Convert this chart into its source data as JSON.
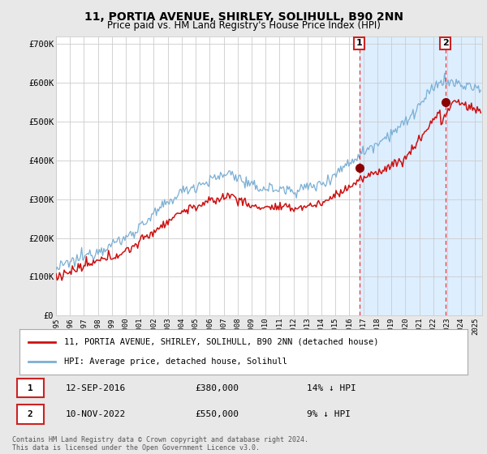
{
  "title": "11, PORTIA AVENUE, SHIRLEY, SOLIHULL, B90 2NN",
  "subtitle": "Price paid vs. HM Land Registry's House Price Index (HPI)",
  "title_fontsize": 10,
  "subtitle_fontsize": 8.5,
  "ylabel_ticks": [
    "£0",
    "£100K",
    "£200K",
    "£300K",
    "£400K",
    "£500K",
    "£600K",
    "£700K"
  ],
  "ytick_vals": [
    0,
    100000,
    200000,
    300000,
    400000,
    500000,
    600000,
    700000
  ],
  "ylim": [
    0,
    720000
  ],
  "xlim_start": 1995.0,
  "xlim_end": 2025.5,
  "hpi_color": "#7bafd4",
  "price_color": "#cc1111",
  "vline_color": "#ee3333",
  "marker_color": "#8b0000",
  "background_color": "#e8e8e8",
  "plot_bg_color": "#ffffff",
  "shade_color": "#ddeeff",
  "grid_color": "#cccccc",
  "sale1_date_num": 2016.71,
  "sale1_price": 380000,
  "sale1_label": "1",
  "sale1_date_str": "12-SEP-2016",
  "sale1_price_str": "£380,000",
  "sale1_hpi_str": "14% ↓ HPI",
  "sale2_date_num": 2022.87,
  "sale2_price": 550000,
  "sale2_label": "2",
  "sale2_date_str": "10-NOV-2022",
  "sale2_price_str": "£550,000",
  "sale2_hpi_str": "9% ↓ HPI",
  "legend_line1": "11, PORTIA AVENUE, SHIRLEY, SOLIHULL, B90 2NN (detached house)",
  "legend_line2": "HPI: Average price, detached house, Solihull",
  "footnote": "Contains HM Land Registry data © Crown copyright and database right 2024.\nThis data is licensed under the Open Government Licence v3.0.",
  "xtick_years": [
    1995,
    1996,
    1997,
    1998,
    1999,
    2000,
    2001,
    2002,
    2003,
    2004,
    2005,
    2006,
    2007,
    2008,
    2009,
    2010,
    2011,
    2012,
    2013,
    2014,
    2015,
    2016,
    2017,
    2018,
    2019,
    2020,
    2021,
    2022,
    2023,
    2024,
    2025
  ]
}
